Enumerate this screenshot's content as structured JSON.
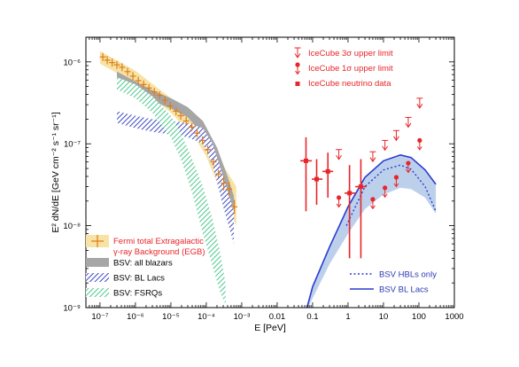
{
  "chart_data": {
    "type": "scatter",
    "x_scale": "log",
    "y_scale": "log",
    "xlabel": "E [PeV]",
    "ylabel": "E² dN/dE [GeV cm⁻² s⁻¹ sr⁻¹]",
    "xlim": [
      4e-08,
      1000
    ],
    "ylim": [
      1e-09,
      2e-06
    ],
    "x_ticks": [
      {
        "v": 1e-07,
        "label": "10⁻⁷"
      },
      {
        "v": 1e-06,
        "label": "10⁻⁶"
      },
      {
        "v": 1e-05,
        "label": "10⁻⁵"
      },
      {
        "v": 0.0001,
        "label": "10⁻⁴"
      },
      {
        "v": 0.001,
        "label": "10⁻³"
      },
      {
        "v": 0.01,
        "label": "0.01"
      },
      {
        "v": 0.1,
        "label": "0.1"
      },
      {
        "v": 1,
        "label": "1"
      },
      {
        "v": 10,
        "label": "10"
      },
      {
        "v": 100,
        "label": "100"
      },
      {
        "v": 1000,
        "label": "1000"
      }
    ],
    "y_ticks": [
      {
        "v": 1e-09,
        "label": "10⁻⁹"
      },
      {
        "v": 1e-08,
        "label": "10⁻⁸"
      },
      {
        "v": 1e-07,
        "label": "10⁻⁷"
      },
      {
        "v": 1e-06,
        "label": "10⁻⁶"
      }
    ],
    "series": [
      {
        "name": "Fermi total Extragalactic γ-ray Background (EGB)",
        "kind": "points_with_band",
        "color": "#e07b18",
        "band_color": "#f7e3a3",
        "points": [
          {
            "x": 1.2e-07,
            "y": 1.15e-06
          },
          {
            "x": 1.6e-07,
            "y": 1.05e-06
          },
          {
            "x": 2.2e-07,
            "y": 9.8e-07
          },
          {
            "x": 3e-07,
            "y": 9.2e-07
          },
          {
            "x": 4.2e-07,
            "y": 8.6e-07
          },
          {
            "x": 6e-07,
            "y": 7.6e-07
          },
          {
            "x": 8.5e-07,
            "y": 6.7e-07
          },
          {
            "x": 1.2e-06,
            "y": 5.9e-07
          },
          {
            "x": 1.7e-06,
            "y": 5.3e-07
          },
          {
            "x": 2.4e-06,
            "y": 4.8e-07
          },
          {
            "x": 3.4e-06,
            "y": 4.3e-07
          },
          {
            "x": 4.8e-06,
            "y": 3.9e-07
          },
          {
            "x": 6.8e-06,
            "y": 3.4e-07
          },
          {
            "x": 9.6e-06,
            "y": 2.9e-07
          },
          {
            "x": 1.4e-05,
            "y": 2.5e-07
          },
          {
            "x": 1.9e-05,
            "y": 2.2e-07
          },
          {
            "x": 2.7e-05,
            "y": 1.9e-07
          },
          {
            "x": 3.9e-05,
            "y": 1.6e-07
          },
          {
            "x": 5.5e-05,
            "y": 1.35e-07
          },
          {
            "x": 7.8e-05,
            "y": 1.1e-07
          },
          {
            "x": 0.00011,
            "y": 8.5e-08
          },
          {
            "x": 0.00016,
            "y": 6e-08
          },
          {
            "x": 0.00022,
            "y": 4.3e-08
          },
          {
            "x": 0.00031,
            "y": 3.3e-08
          },
          {
            "x": 0.00044,
            "y": 2.8e-08
          },
          {
            "x": 0.00062,
            "y": 1.7e-08
          }
        ],
        "band_upper": [
          [
            1e-07,
            1.35e-06
          ],
          [
            1e-06,
            7.8e-07
          ],
          [
            1e-05,
            3.6e-07
          ],
          [
            5e-05,
            1.9e-07
          ],
          [
            0.0001,
            1.2e-07
          ],
          [
            0.0003,
            5.5e-08
          ],
          [
            0.0007,
            3e-08
          ]
        ],
        "band_lower": [
          [
            1e-07,
            9.5e-07
          ],
          [
            1e-06,
            5.5e-07
          ],
          [
            1e-05,
            2.4e-07
          ],
          [
            5e-05,
            1.15e-07
          ],
          [
            0.0001,
            7e-08
          ],
          [
            0.0003,
            2.2e-08
          ],
          [
            0.0007,
            1e-08
          ]
        ]
      },
      {
        "name": "BSV: all blazars",
        "kind": "band",
        "color": "#a6a6a6",
        "upper": [
          [
            3e-07,
            7.6e-07
          ],
          [
            1e-06,
            5.8e-07
          ],
          [
            3e-06,
            4.5e-07
          ],
          [
            1e-05,
            3.6e-07
          ],
          [
            3e-05,
            2.8e-07
          ],
          [
            8e-05,
            1.9e-07
          ],
          [
            0.0002,
            9e-08
          ],
          [
            0.0004,
            4e-08
          ],
          [
            0.0006,
            2.3e-08
          ]
        ],
        "lower": [
          [
            3e-07,
            5.5e-07
          ],
          [
            1e-06,
            4.2e-07
          ],
          [
            3e-06,
            3.3e-07
          ],
          [
            1e-05,
            2.7e-07
          ],
          [
            3e-05,
            2.1e-07
          ],
          [
            8e-05,
            1.3e-07
          ],
          [
            0.0002,
            5.5e-08
          ],
          [
            0.0004,
            2.2e-08
          ],
          [
            0.0006,
            1.2e-08
          ]
        ]
      },
      {
        "name": "BSV: BL Lacs",
        "kind": "band",
        "color": "#3d49c0",
        "upper": [
          [
            3e-07,
            2.5e-07
          ],
          [
            1e-06,
            2.2e-07
          ],
          [
            3e-06,
            2e-07
          ],
          [
            1e-05,
            1.9e-07
          ],
          [
            3e-05,
            1.8e-07
          ],
          [
            8e-05,
            1.55e-07
          ],
          [
            0.00015,
            1e-07
          ],
          [
            0.0003,
            4e-08
          ],
          [
            0.0006,
            1.5e-08
          ]
        ],
        "lower": [
          [
            3e-07,
            1.8e-07
          ],
          [
            1e-06,
            1.55e-07
          ],
          [
            3e-06,
            1.4e-07
          ],
          [
            1e-05,
            1.3e-07
          ],
          [
            3e-05,
            1.2e-07
          ],
          [
            8e-05,
            1e-07
          ],
          [
            0.00015,
            5.5e-08
          ],
          [
            0.0003,
            1.7e-08
          ],
          [
            0.0006,
            6e-09
          ]
        ]
      },
      {
        "name": "BSV: FSRQs",
        "kind": "band",
        "color": "#4bc98c",
        "upper": [
          [
            3e-07,
            6.5e-07
          ],
          [
            1e-06,
            5.3e-07
          ],
          [
            3e-06,
            3.8e-07
          ],
          [
            1e-05,
            2.2e-07
          ],
          [
            2e-05,
            1.3e-07
          ],
          [
            4e-05,
            6.5e-08
          ],
          [
            8e-05,
            3e-08
          ],
          [
            0.00015,
            1.2e-08
          ],
          [
            0.00025,
            4.5e-09
          ],
          [
            0.00035,
            2e-09
          ]
        ],
        "lower": [
          [
            3e-07,
            4.6e-07
          ],
          [
            1e-06,
            3.6e-07
          ],
          [
            3e-06,
            2.4e-07
          ],
          [
            1e-05,
            1.2e-07
          ],
          [
            2e-05,
            6.2e-08
          ],
          [
            4e-05,
            2.5e-08
          ],
          [
            8e-05,
            8e-09
          ],
          [
            0.00015,
            3.2e-09
          ],
          [
            0.00025,
            1.5e-09
          ],
          [
            0.00035,
            1.1e-09
          ]
        ]
      },
      {
        "name": "IceCube neutrino data",
        "kind": "points_errorbars",
        "color": "#e8262a",
        "points": [
          {
            "x": 0.065,
            "y": 6.2e-08,
            "ylo": 1.5e-08,
            "yhi": 1.2e-07,
            "xlo": 0.045,
            "xhi": 0.095
          },
          {
            "x": 0.13,
            "y": 3.7e-08,
            "ylo": 1.8e-08,
            "yhi": 6.5e-08,
            "xlo": 0.095,
            "xhi": 0.19
          },
          {
            "x": 0.27,
            "y": 4.6e-08,
            "ylo": 2.2e-08,
            "yhi": 7.8e-08,
            "xlo": 0.19,
            "xhi": 0.38
          },
          {
            "x": 1.1,
            "y": 2.5e-08,
            "ylo": 4e-09,
            "yhi": 5.5e-08,
            "xlo": 0.8,
            "xhi": 1.6
          },
          {
            "x": 2.3,
            "y": 3e-08,
            "ylo": 4e-09,
            "yhi": 6.5e-08,
            "xlo": 1.6,
            "xhi": 3.3
          }
        ]
      },
      {
        "name": "IceCube 1σ upper limit",
        "kind": "upper_limit_1sigma",
        "color": "#e8262a",
        "points": [
          {
            "x": 0.55,
            "y": 2.2e-08
          },
          {
            "x": 5.0,
            "y": 2.1e-08
          },
          {
            "x": 11,
            "y": 2.9e-08
          },
          {
            "x": 23,
            "y": 3.9e-08
          },
          {
            "x": 50,
            "y": 5.8e-08
          },
          {
            "x": 105,
            "y": 1.1e-07
          }
        ]
      },
      {
        "name": "IceCube 3σ upper limit",
        "kind": "upper_limit_3sigma",
        "color": "#e8262a",
        "points": [
          {
            "x": 0.55,
            "y": 8.5e-08
          },
          {
            "x": 5.0,
            "y": 8e-08
          },
          {
            "x": 11,
            "y": 1.1e-07
          },
          {
            "x": 23,
            "y": 1.45e-07
          },
          {
            "x": 50,
            "y": 2.1e-07
          },
          {
            "x": 105,
            "y": 3.6e-07
          }
        ]
      },
      {
        "name": "BSV BL Lacs",
        "kind": "line",
        "color": "#2a3bd0",
        "dash": false,
        "points": [
          [
            0.065,
            9e-10
          ],
          [
            0.1,
            1.8e-09
          ],
          [
            0.3,
            5.5e-09
          ],
          [
            1,
            1.7e-08
          ],
          [
            3,
            3.9e-08
          ],
          [
            10,
            6.2e-08
          ],
          [
            30,
            7.3e-08
          ],
          [
            60,
            6.8e-08
          ],
          [
            150,
            4.8e-08
          ],
          [
            300,
            3.2e-08
          ]
        ]
      },
      {
        "name": "BSV HBLs only",
        "kind": "line",
        "color": "#2a3bd0",
        "dash": true,
        "points": [
          [
            0.9,
            1e-08
          ],
          [
            3,
            3e-08
          ],
          [
            10,
            4.8e-08
          ],
          [
            30,
            5.5e-08
          ],
          [
            60,
            4.9e-08
          ],
          [
            150,
            3e-08
          ],
          [
            300,
            1.5e-08
          ]
        ]
      },
      {
        "name": "BSV band",
        "kind": "band",
        "color": "#b9cdea",
        "upper": [
          [
            0.065,
            9e-10
          ],
          [
            0.1,
            1.8e-09
          ],
          [
            0.3,
            5.5e-09
          ],
          [
            1,
            1.7e-08
          ],
          [
            3,
            3.9e-08
          ],
          [
            10,
            6.2e-08
          ],
          [
            30,
            7.3e-08
          ],
          [
            60,
            6.8e-08
          ],
          [
            150,
            4.8e-08
          ],
          [
            300,
            3.2e-08
          ]
        ],
        "lower": [
          [
            0.065,
            9e-10
          ],
          [
            0.1,
            1.3e-09
          ],
          [
            0.3,
            3.4e-09
          ],
          [
            1,
            8e-09
          ],
          [
            3,
            1.6e-08
          ],
          [
            10,
            2.4e-08
          ],
          [
            30,
            2.9e-08
          ],
          [
            60,
            2.8e-08
          ],
          [
            150,
            2.2e-08
          ],
          [
            300,
            1.4e-08
          ]
        ]
      }
    ],
    "legend_top_right": [
      {
        "kind": "ul3",
        "text": "IceCube 3σ upper limit"
      },
      {
        "kind": "ul1",
        "text": "IceCube 1σ upper limit"
      },
      {
        "kind": "sq",
        "text": "IceCube neutrino data"
      }
    ],
    "legend_bottom_left": [
      {
        "kind": "fermi",
        "lines": [
          "Fermi total Extragalactic",
          "γ-ray Background (EGB)"
        ]
      },
      {
        "kind": "gray",
        "text": "BSV: all blazars"
      },
      {
        "kind": "blue_hatch",
        "text": "BSV: BL Lacs"
      },
      {
        "kind": "green_hatch",
        "text": "BSV: FSRQs"
      }
    ],
    "legend_bottom_right": [
      {
        "kind": "dotted",
        "text": "BSV HBLs only"
      },
      {
        "kind": "solid",
        "text": "BSV BL Lacs"
      }
    ]
  }
}
